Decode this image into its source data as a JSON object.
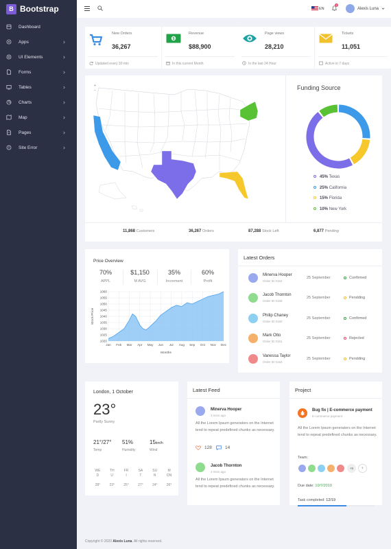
{
  "brand": {
    "logo": "B",
    "name": "Bootstrap"
  },
  "sidebar": {
    "items": [
      {
        "label": "Dashboard",
        "icon": "dashboard-icon",
        "chevron": false
      },
      {
        "label": "Apps",
        "icon": "apps-icon",
        "chevron": true
      },
      {
        "label": "UI Elements",
        "icon": "ui-elements-icon",
        "chevron": true
      },
      {
        "label": "Forms",
        "icon": "forms-icon",
        "chevron": true
      },
      {
        "label": "Tables",
        "icon": "tables-icon",
        "chevron": true
      },
      {
        "label": "Charts",
        "icon": "charts-icon",
        "chevron": true
      },
      {
        "label": "Map",
        "icon": "map-icon",
        "chevron": true
      },
      {
        "label": "Pages",
        "icon": "pages-icon",
        "chevron": true
      },
      {
        "label": "Site Error",
        "icon": "site-error-icon",
        "chevron": true
      }
    ]
  },
  "topbar": {
    "lang": "EN",
    "notifications": "2",
    "user": "Alexis Luna"
  },
  "stats": [
    {
      "label": "New Orders",
      "value": "36,267",
      "foot": "Updated every 30 min",
      "color": "#3d8be0",
      "icon": "cart-icon"
    },
    {
      "label": "Revenue",
      "value": "$88,900",
      "foot": "In this current Month",
      "color": "#22a34a",
      "icon": "money-icon"
    },
    {
      "label": "Page views",
      "value": "28,210",
      "foot": "In the last 24 Hour",
      "color": "#1fa3a6",
      "icon": "eye-icon"
    },
    {
      "label": "Tickets",
      "value": "11,051",
      "foot": "Active in 7 days",
      "color": "#f2c12e",
      "icon": "envelope-icon"
    }
  ],
  "funding": {
    "title": "Funding Source",
    "items": [
      {
        "pct": "45%",
        "name": "Texas",
        "color": "#7b6ee8",
        "value": 45
      },
      {
        "pct": "25%",
        "name": "California",
        "color": "#3d9ae8",
        "value": 25
      },
      {
        "pct": "15%",
        "name": "Florida",
        "color": "#f7c82c",
        "value": 15
      },
      {
        "pct": "10%",
        "name": "New York",
        "color": "#58c234",
        "value": 10
      }
    ]
  },
  "map_footer": [
    {
      "value": "11,868",
      "label": "Customers"
    },
    {
      "value": "36,267",
      "label": "Orders"
    },
    {
      "value": "87,288",
      "label": "Stock Left"
    },
    {
      "value": "6,877",
      "label": "Pending"
    }
  ],
  "price": {
    "title": "Price Overview",
    "stats": [
      {
        "value": "70%",
        "label": "APPL"
      },
      {
        "value": "$1,150",
        "label": "M AVG"
      },
      {
        "value": "35%",
        "label": "Increment"
      },
      {
        "value": "60%",
        "label": "Profit"
      }
    ]
  },
  "chart_data": {
    "type": "area",
    "xlabel": "Months",
    "ylabel": "Stock Price",
    "categories": [
      "Jan",
      "Feb",
      "Mar",
      "Apr",
      "May",
      "Jun",
      "Jul",
      "Aug",
      "Sep",
      "Oct",
      "Nov",
      "Dec"
    ],
    "x": [
      0,
      0.5,
      1,
      1.5,
      2,
      2.3,
      2.6,
      3,
      3.3,
      3.6,
      4,
      4.5,
      5,
      5.5,
      6,
      6.5,
      7,
      7.5,
      8,
      8.5,
      9,
      9.5,
      10,
      10.5,
      11
    ],
    "values": [
      1022,
      1024,
      1027,
      1030,
      1037,
      1042,
      1040,
      1033,
      1030,
      1029,
      1032,
      1036,
      1041,
      1044,
      1047,
      1049,
      1048,
      1051,
      1050,
      1052,
      1054,
      1056,
      1057,
      1058,
      1060
    ],
    "ylim": [
      1020,
      1060
    ],
    "yticks": [
      1020,
      1025,
      1030,
      1035,
      1040,
      1045,
      1050,
      1055,
      1060
    ],
    "grid": true,
    "color": "#8ec5f5"
  },
  "orders": {
    "title": "Latest Orders",
    "rows": [
      {
        "name": "Minerva Hooper",
        "id": "Order ID 0162",
        "date": "25 September",
        "status": "Confirmed",
        "status_color": "#3aa845",
        "avatar": "#9aa9ee"
      },
      {
        "name": "Jacob Thornton",
        "id": "Order ID 0168",
        "date": "25 September",
        "status": "Pendding",
        "status_color": "#f2c12e",
        "avatar": "#8fdc8f"
      },
      {
        "name": "Philip Chaney",
        "id": "Order ID 0160",
        "date": "25 September",
        "status": "Confirmed",
        "status_color": "#3aa845",
        "avatar": "#8dd0f2"
      },
      {
        "name": "Mark Otto",
        "id": "Order ID 0161",
        "date": "25 September",
        "status": "Rejected",
        "status_color": "#e84c6e",
        "avatar": "#f5b06b"
      },
      {
        "name": "Vanessa Taylor",
        "id": "Order ID 0163",
        "date": "25 September",
        "status": "Pendding",
        "status_color": "#f2c12e",
        "avatar": "#f08a8a"
      }
    ]
  },
  "weather": {
    "city": "London, 1 October",
    "temp": "23°",
    "desc": "Partly Sunny",
    "metrics": [
      {
        "value": "21°/27°",
        "label": "Temp"
      },
      {
        "value": "51%",
        "label": "Humidity"
      },
      {
        "value": "15",
        "unit": "km/h",
        "label": "Wind"
      }
    ],
    "days": [
      {
        "d1": "WE",
        "d2": "D",
        "t": "28°"
      },
      {
        "d1": "TH",
        "d2": "U",
        "t": "23°"
      },
      {
        "d1": "FR",
        "d2": "I",
        "t": "25°"
      },
      {
        "d1": "SA",
        "d2": "T",
        "t": "27°"
      },
      {
        "d1": "SU",
        "d2": "N",
        "t": "24°"
      },
      {
        "d1": "M",
        "d2": "ON",
        "t": "26°"
      }
    ]
  },
  "feed": {
    "title": "Latest Feed",
    "posts": [
      {
        "name": "Minerva Hooper",
        "time": "3 mins ago",
        "text": "All the Lorem Ipsum generators on the Internet tend to repeat predefined chunks as necessary.",
        "avatar": "#9aa9ee"
      },
      {
        "name": "Jacob Thornton",
        "time": "3 mins ago",
        "text": "All the Lorem Ipsum generators on the Internet tend to repeat predefined chunks as necessary.",
        "avatar": "#8fdc8f"
      }
    ],
    "likes": "128",
    "comments": "14"
  },
  "project": {
    "title": "Project",
    "name": "Bug fix | E-commerce payment",
    "sub": "E-commerce payment",
    "text": "All the Lorem Ipsum generators on the Internet tend to repeat predefined chunks as necessary.",
    "team_label": "Team:",
    "team_colors": [
      "#9aa9ee",
      "#8fdc8f",
      "#8dd0f2",
      "#f5b06b",
      "#f08a8a"
    ],
    "more": "+5",
    "add": "+",
    "due_label": "Due date:",
    "due": "10/7/2019",
    "task_label": "Task completed:",
    "task": "12/19",
    "progress": 0.63
  },
  "footer": {
    "prefix": "Copyright © 2020 ",
    "name": "Alexis Luna",
    "suffix": ". All rights reserved."
  }
}
